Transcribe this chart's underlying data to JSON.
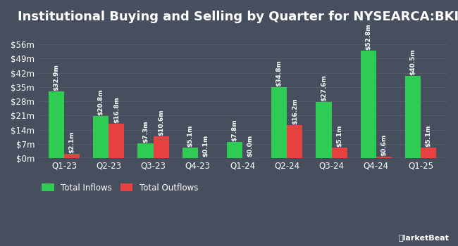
{
  "title": "Institutional Buying and Selling by Quarter for NYSEARCA:BKIE",
  "quarters": [
    "Q1-23",
    "Q2-23",
    "Q3-23",
    "Q4-23",
    "Q1-24",
    "Q2-24",
    "Q3-24",
    "Q4-24",
    "Q1-25"
  ],
  "inflows": [
    32.9,
    20.8,
    7.3,
    5.1,
    7.8,
    34.8,
    27.6,
    52.8,
    40.5
  ],
  "outflows": [
    2.1,
    16.8,
    10.6,
    0.1,
    0.0,
    16.2,
    5.1,
    0.6,
    5.1
  ],
  "inflow_labels": [
    "$32.9m",
    "$20.8m",
    "$7.3m",
    "$5.1m",
    "$7.8m",
    "$34.8m",
    "$27.6m",
    "$52.8m",
    "$40.5m"
  ],
  "outflow_labels": [
    "$2.1m",
    "$16.8m",
    "$10.6m",
    "$0.1m",
    "$0.0m",
    "$16.2m",
    "$5.1m",
    "$0.6m",
    "$5.1m"
  ],
  "inflow_color": "#2ecc52",
  "outflow_color": "#e84040",
  "background_color": "#474f5e",
  "text_color": "#ffffff",
  "grid_color": "#565e6d",
  "yticks": [
    0,
    7,
    14,
    21,
    28,
    35,
    42,
    49,
    56
  ],
  "ytick_labels": [
    "$0m",
    "$7m",
    "$14m",
    "$21m",
    "$28m",
    "$35m",
    "$42m",
    "$49m",
    "$56m"
  ],
  "ylim": [
    0,
    63
  ],
  "legend_inflow": "Total Inflows",
  "legend_outflow": "Total Outflows",
  "bar_width": 0.35,
  "title_fontsize": 13,
  "tick_fontsize": 8.5,
  "label_fontsize": 6.5
}
